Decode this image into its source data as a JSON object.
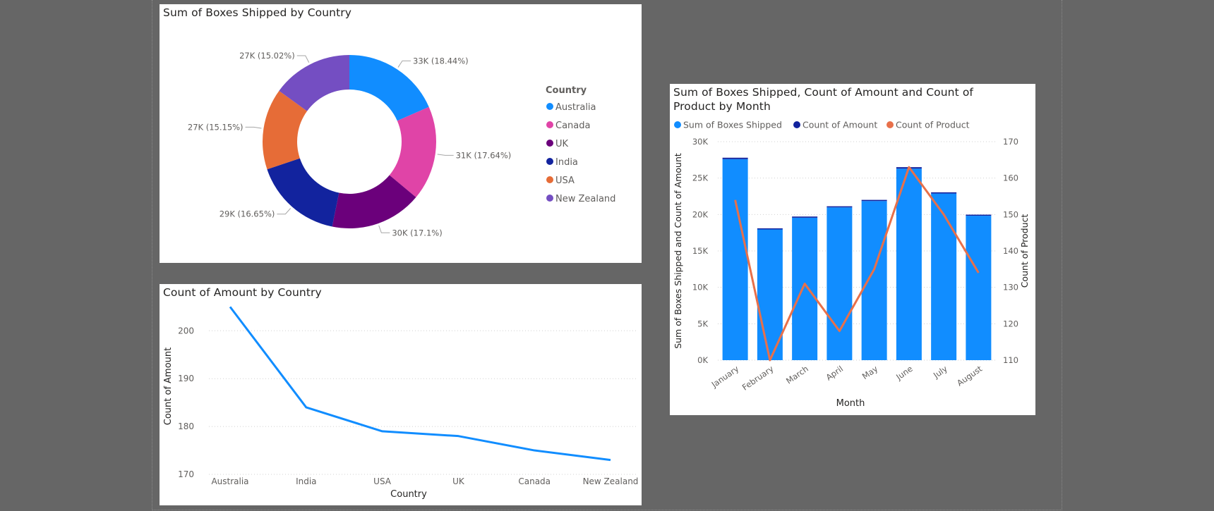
{
  "visuals": {
    "donut": {
      "title": "Sum of Boxes Shipped by Country",
      "legend_title": "Country"
    },
    "line": {
      "title": "Count of Amount by Country"
    },
    "combo": {
      "title": "Sum of Boxes Shipped, Count of Amount and Count of Product by Month"
    }
  },
  "colors": {
    "australia": "#118DFF",
    "canada": "#E044A7",
    "uk": "#6B007B",
    "india": "#12239E",
    "usa": "#E66C37",
    "new_zealand": "#744EC2",
    "line_blue": "#118DFF",
    "orange_line": "#E8704A"
  },
  "chart_data": [
    {
      "type": "pie",
      "title": "Sum of Boxes Shipped by Country",
      "legend_title": "Country",
      "legend_position": "right",
      "slices": [
        {
          "label": "Australia",
          "value": 33,
          "display": "33K (18.44%)",
          "color": "#118DFF"
        },
        {
          "label": "Canada",
          "value": 31,
          "display": "31K (17.64%)",
          "color": "#E044A7"
        },
        {
          "label": "UK",
          "value": 30,
          "display": "30K (17.1%)",
          "color": "#6B007B"
        },
        {
          "label": "India",
          "value": 29,
          "display": "29K (16.65%)",
          "color": "#12239E"
        },
        {
          "label": "USA",
          "value": 27,
          "display": "27K (15.15%)",
          "color": "#E66C37"
        },
        {
          "label": "New Zealand",
          "value": 27,
          "display": "27K (15.02%)",
          "color": "#744EC2"
        }
      ],
      "percents": [
        18.44,
        17.64,
        17.1,
        16.65,
        15.15,
        15.02
      ]
    },
    {
      "type": "line",
      "title": "Count of Amount by Country",
      "xlabel": "Country",
      "ylabel": "Count of Amount",
      "categories": [
        "Australia",
        "India",
        "USA",
        "UK",
        "Canada",
        "New Zealand"
      ],
      "values": [
        205,
        184,
        179,
        178,
        175,
        173
      ],
      "ylim": [
        170,
        200
      ],
      "yticks": [
        170,
        180,
        190,
        200
      ],
      "grid": true
    },
    {
      "type": "bar",
      "title": "Sum of Boxes Shipped, Count of Amount and Count of Product by Month",
      "xlabel": "Month",
      "ylabel": "Sum of Boxes Shipped and Count of Amount",
      "y2label": "Count of Product",
      "categories": [
        "January",
        "February",
        "March",
        "April",
        "May",
        "June",
        "July",
        "August"
      ],
      "legend_position": "top-left",
      "series": [
        {
          "name": "Sum of Boxes Shipped",
          "kind": "bar",
          "axis": "left",
          "color": "#118DFF",
          "values": [
            27600,
            17950,
            19560,
            20980,
            21850,
            26300,
            22880,
            19830
          ]
        },
        {
          "name": "Count of Amount",
          "kind": "bar",
          "axis": "left",
          "color": "#12239E",
          "values": [
            197,
            150,
            160,
            150,
            157,
            200,
            167,
            150
          ]
        },
        {
          "name": "Count of Product",
          "kind": "line",
          "axis": "right",
          "color": "#E8704A",
          "values": [
            154,
            110,
            131,
            118,
            135,
            163,
            150,
            134
          ]
        }
      ],
      "ylim": [
        0,
        30000
      ],
      "yticks": [
        0,
        5000,
        10000,
        15000,
        20000,
        25000,
        30000
      ],
      "ytick_labels": [
        "0K",
        "5K",
        "10K",
        "15K",
        "20K",
        "25K",
        "30K"
      ],
      "y2lim": [
        110,
        170
      ],
      "y2ticks": [
        110,
        120,
        130,
        140,
        150,
        160,
        170
      ],
      "grid": true
    }
  ]
}
